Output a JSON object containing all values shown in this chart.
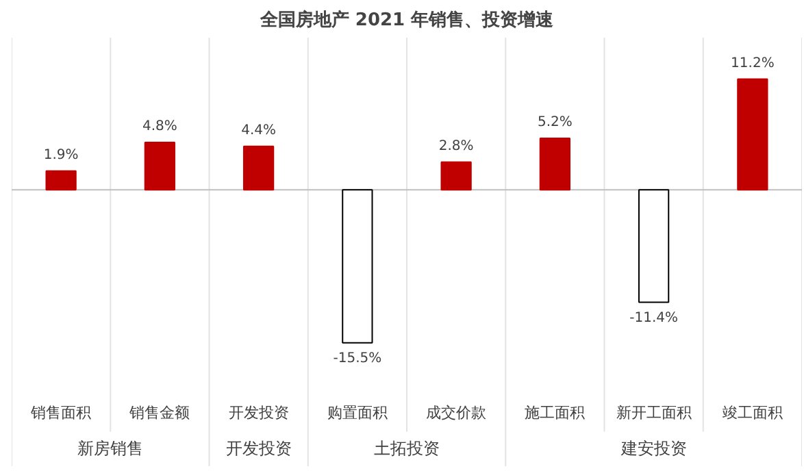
{
  "chart_data": {
    "type": "bar",
    "title": "全国房地产 2021 年销售、投资增速",
    "categories": [
      "销售面积",
      "销售金额",
      "开发投资",
      "购置面积",
      "成交价款",
      "施工面积",
      "新开工面积",
      "竣工面积"
    ],
    "values": [
      1.9,
      4.8,
      4.4,
      -15.5,
      2.8,
      5.2,
      -11.4,
      11.2
    ],
    "colors": [
      "#c00000",
      "#c00000",
      "#c00000",
      "#ffffff",
      "#c00000",
      "#c00000",
      "#ffffff",
      "#c00000"
    ],
    "value_labels": [
      "1.9%",
      "4.8%",
      "4.4%",
      "-15.5%",
      "2.8%",
      "5.2%",
      "-11.4%",
      "11.2%"
    ],
    "annotations": [
      "新房销售",
      "开发投资",
      "土拓投资",
      "建安投资"
    ],
    "grid": false
  }
}
